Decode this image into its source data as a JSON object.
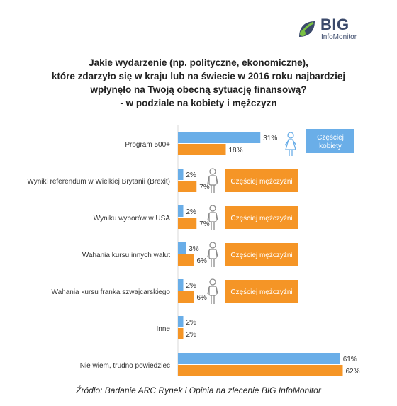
{
  "logo": {
    "big": "BIG",
    "sub": "InfoMonitor"
  },
  "title_lines": [
    "Jakie wydarzenie (np. polityczne, ekonomiczne),",
    "które zdarzyło się w kraju lub na świecie w 2016 roku najbardziej",
    "wpłynęło na Twoją obecną sytuację finansową?",
    "- w podziale na kobiety i mężczyzn"
  ],
  "source": "Źródło: Badanie ARC Rynek i Opinia na zlecenie BIG InfoMonitor",
  "colors": {
    "women": "#6aaee8",
    "men": "#f59526",
    "icon_gray": "#8a8a8a",
    "brand": "#3b4a6b"
  },
  "chart_data": {
    "type": "bar",
    "orientation": "horizontal",
    "categories": [
      "Program 500+",
      "Wyniki referendum w Wielkiej Brytanii (Brexit)",
      "Wyniku wyborów w USA",
      "Wahania kursu innych walut",
      "Wahania kursu franka szwajcarskiego",
      "Inne",
      "Nie wiem, trudno powiedzieć"
    ],
    "series": [
      {
        "values": [
          31,
          2,
          2,
          3,
          2,
          2,
          61
        ],
        "color": "#6aaee8"
      },
      {
        "values": [
          18,
          7,
          7,
          6,
          6,
          2,
          62
        ],
        "color": "#f59526"
      }
    ],
    "labels": [
      [
        "31%",
        "18%"
      ],
      [
        "2%",
        "7%"
      ],
      [
        "2%",
        "7%"
      ],
      [
        "3%",
        "6%"
      ],
      [
        "2%",
        "6%"
      ],
      [
        "2%",
        "2%"
      ],
      [
        "61%",
        "62%"
      ]
    ],
    "xlim": [
      0,
      62
    ],
    "callouts": [
      {
        "row": 0,
        "text_lines": [
          "Częściej",
          "kobiety"
        ],
        "icon": "woman-icon",
        "color": "#6aaee8"
      },
      {
        "row": 1,
        "text_lines": [
          "Częściej mężczyźni"
        ],
        "icon": "man-icon",
        "color": "#f59526"
      },
      {
        "row": 2,
        "text_lines": [
          "Częściej mężczyźni"
        ],
        "icon": "man-icon",
        "color": "#f59526"
      },
      {
        "row": 3,
        "text_lines": [
          "Częściej mężczyźni"
        ],
        "icon": "man-icon",
        "color": "#f59526"
      },
      {
        "row": 4,
        "text_lines": [
          "Częściej mężczyźni"
        ],
        "icon": "man-icon",
        "color": "#f59526"
      }
    ]
  }
}
